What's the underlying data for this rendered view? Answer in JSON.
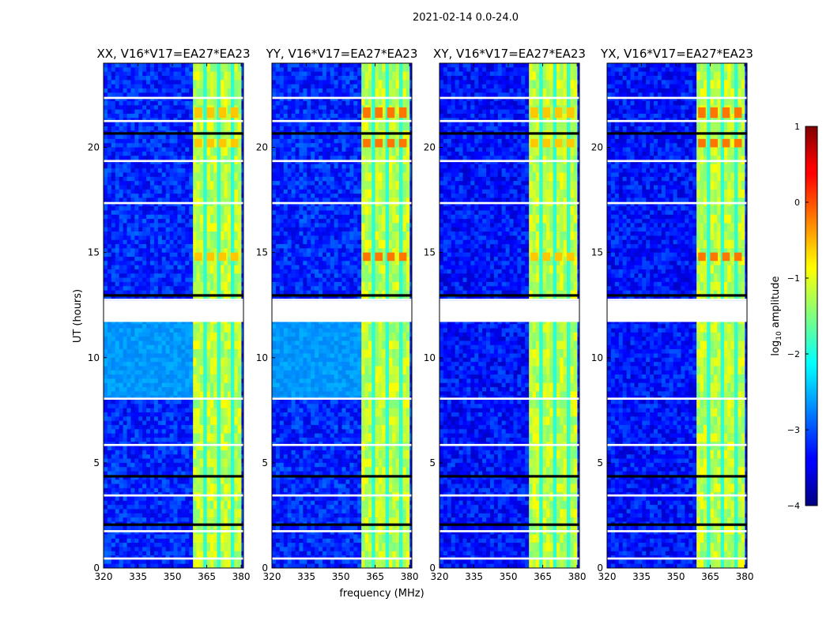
{
  "suptitle": "2021-02-14 0.0-24.0",
  "ylabel": "UT (hours)",
  "xlabel": "frequency (MHz)",
  "colorbar": {
    "label_prefix": "log",
    "label_sub": "10",
    "label_suffix": " amplitude",
    "ticks": [
      "1",
      "0",
      "−1",
      "−2",
      "−3",
      "−4"
    ],
    "tick_values": [
      1,
      0,
      -1,
      -2,
      -3,
      -4
    ],
    "range": [
      -4,
      1
    ],
    "colormap": "jet"
  },
  "colors": {
    "background": "#ffffff",
    "flagged": "#ffffff",
    "gap": "#000000"
  },
  "chart_data": [
    {
      "type": "heatmap",
      "panel": 1,
      "title": "XX, V16*V17=EA27*EA23",
      "xlabel": "",
      "ylabel": "UT (hours)",
      "xlim": [
        320,
        381
      ],
      "ylim": [
        0,
        24
      ],
      "xticks": [
        "320",
        "335",
        "350",
        "365",
        "380"
      ],
      "xtick_values": [
        320,
        335,
        350,
        365,
        380
      ],
      "yticks": [
        "0",
        "5",
        "10",
        "15",
        "20"
      ],
      "ytick_values": [
        0,
        5,
        10,
        15,
        20
      ],
      "rfi_band_mhz": [
        359,
        380
      ],
      "noise_level_log10_amplitude": -3.2,
      "flagged_hours": [
        0.4,
        1.7,
        3.4,
        5.8,
        8.0,
        11.7,
        12.7,
        17.3,
        19.3,
        21.2,
        22.3
      ]
    },
    {
      "type": "heatmap",
      "panel": 2,
      "title": "YY, V16*V17=EA27*EA23",
      "xlabel": "frequency (MHz)",
      "ylabel": "",
      "xlim": [
        320,
        381
      ],
      "ylim": [
        0,
        24
      ],
      "xticks": [
        "320",
        "335",
        "350",
        "365",
        "380"
      ],
      "xtick_values": [
        320,
        335,
        350,
        365,
        380
      ],
      "yticks": [
        "0",
        "5",
        "10",
        "15",
        "20"
      ],
      "ytick_values": [
        0,
        5,
        10,
        15,
        20
      ],
      "rfi_band_mhz": [
        359,
        380
      ],
      "noise_level_log10_amplitude": -3.2,
      "flagged_hours": [
        0.4,
        1.7,
        3.4,
        5.8,
        8.0,
        11.7,
        12.7,
        17.3,
        19.3,
        21.2,
        22.3
      ]
    },
    {
      "type": "heatmap",
      "panel": 3,
      "title": "XY, V16*V17=EA27*EA23",
      "xlabel": "",
      "ylabel": "",
      "xlim": [
        320,
        381
      ],
      "ylim": [
        0,
        24
      ],
      "xticks": [
        "320",
        "335",
        "350",
        "365",
        "380"
      ],
      "xtick_values": [
        320,
        335,
        350,
        365,
        380
      ],
      "yticks": [
        "0",
        "5",
        "10",
        "15",
        "20"
      ],
      "ytick_values": [
        0,
        5,
        10,
        15,
        20
      ],
      "rfi_band_mhz": [
        359,
        380
      ],
      "noise_level_log10_amplitude": -3.3,
      "flagged_hours": [
        0.4,
        1.7,
        3.4,
        5.8,
        8.0,
        11.7,
        12.7,
        17.3,
        19.3,
        21.2,
        22.3
      ]
    },
    {
      "type": "heatmap",
      "panel": 4,
      "title": "YX, V16*V17=EA27*EA23",
      "xlabel": "",
      "ylabel": "",
      "xlim": [
        320,
        381
      ],
      "ylim": [
        0,
        24
      ],
      "xticks": [
        "320",
        "335",
        "350",
        "365",
        "380"
      ],
      "xtick_values": [
        320,
        335,
        350,
        365,
        380
      ],
      "yticks": [
        "0",
        "5",
        "10",
        "15",
        "20"
      ],
      "ytick_values": [
        0,
        5,
        10,
        15,
        20
      ],
      "rfi_band_mhz": [
        359,
        380
      ],
      "noise_level_log10_amplitude": -3.3,
      "flagged_hours": [
        0.4,
        1.7,
        3.4,
        5.8,
        8.0,
        11.7,
        12.7,
        17.3,
        19.3,
        21.2,
        22.3
      ]
    }
  ]
}
